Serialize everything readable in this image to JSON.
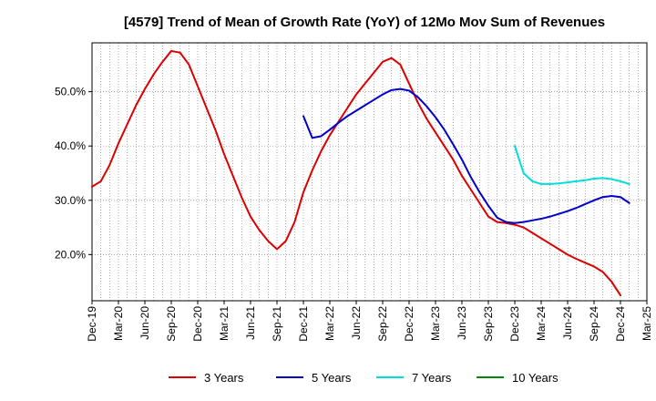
{
  "chart_data": {
    "type": "line",
    "title": "[4579]  Trend of Mean of Growth Rate (YoY) of 12Mo Mov Sum of Revenues",
    "xlabel": "",
    "ylabel": "",
    "x_start": "Dec-19",
    "x_ticks": [
      "Dec-19",
      "Mar-20",
      "Jun-20",
      "Sep-20",
      "Dec-20",
      "Mar-21",
      "Jun-21",
      "Sep-21",
      "Dec-21",
      "Mar-22",
      "Jun-22",
      "Sep-22",
      "Dec-22",
      "Mar-23",
      "Jun-23",
      "Sep-23",
      "Dec-23",
      "Mar-24",
      "Jun-24",
      "Sep-24",
      "Dec-24",
      "Mar-25"
    ],
    "y_ticks": [
      {
        "value": 20,
        "label": "20.0%"
      },
      {
        "value": 30,
        "label": "30.0%"
      },
      {
        "value": 40,
        "label": "40.0%"
      },
      {
        "value": 50,
        "label": "50.0%"
      }
    ],
    "xlim_months": [
      0,
      63
    ],
    "ylim": [
      11.5,
      59
    ],
    "grid": true,
    "legend_position": "bottom",
    "series": [
      {
        "name": "3 Years",
        "color": "#dd0000",
        "start_month": 0,
        "values": [
          32.5,
          33.5,
          36.5,
          40.5,
          44.0,
          47.5,
          50.5,
          53.2,
          55.5,
          57.5,
          57.2,
          55.0,
          51.0,
          47.0,
          43.0,
          38.5,
          34.5,
          30.5,
          27.0,
          24.5,
          22.5,
          21.0,
          22.5,
          26.0,
          31.5,
          35.5,
          39.0,
          42.0,
          44.5,
          47.0,
          49.5,
          51.5,
          53.5,
          55.5,
          56.2,
          55.0,
          51.5,
          48.0,
          45.0,
          42.5,
          40.0,
          37.5,
          34.5,
          32.0,
          29.5,
          27.0,
          26.0,
          25.8,
          25.5,
          25.0,
          24.0,
          23.0,
          22.0,
          21.0,
          20.0,
          19.2,
          18.5,
          17.8,
          16.8,
          15.0,
          12.5
        ]
      },
      {
        "name": "5 Years",
        "color": "#0000cc",
        "start_month": 24,
        "values": [
          45.5,
          41.5,
          41.8,
          43.0,
          44.3,
          45.5,
          46.5,
          47.5,
          48.5,
          49.5,
          50.3,
          50.5,
          50.2,
          49.0,
          47.3,
          45.3,
          43.0,
          40.3,
          37.5,
          34.3,
          31.5,
          29.0,
          26.8,
          26.0,
          25.8,
          26.0,
          26.3,
          26.6,
          27.0,
          27.5,
          28.0,
          28.6,
          29.3,
          30.0,
          30.6,
          30.8,
          30.6,
          29.5
        ]
      },
      {
        "name": "7 Years",
        "color": "#00dddd",
        "start_month": 48,
        "values": [
          40.0,
          35.0,
          33.5,
          33.0,
          33.0,
          33.1,
          33.3,
          33.5,
          33.7,
          34.0,
          34.1,
          33.9,
          33.5,
          33.0
        ]
      },
      {
        "name": "10 Years",
        "color": "#008800",
        "start_month": 0,
        "values": []
      }
    ]
  }
}
